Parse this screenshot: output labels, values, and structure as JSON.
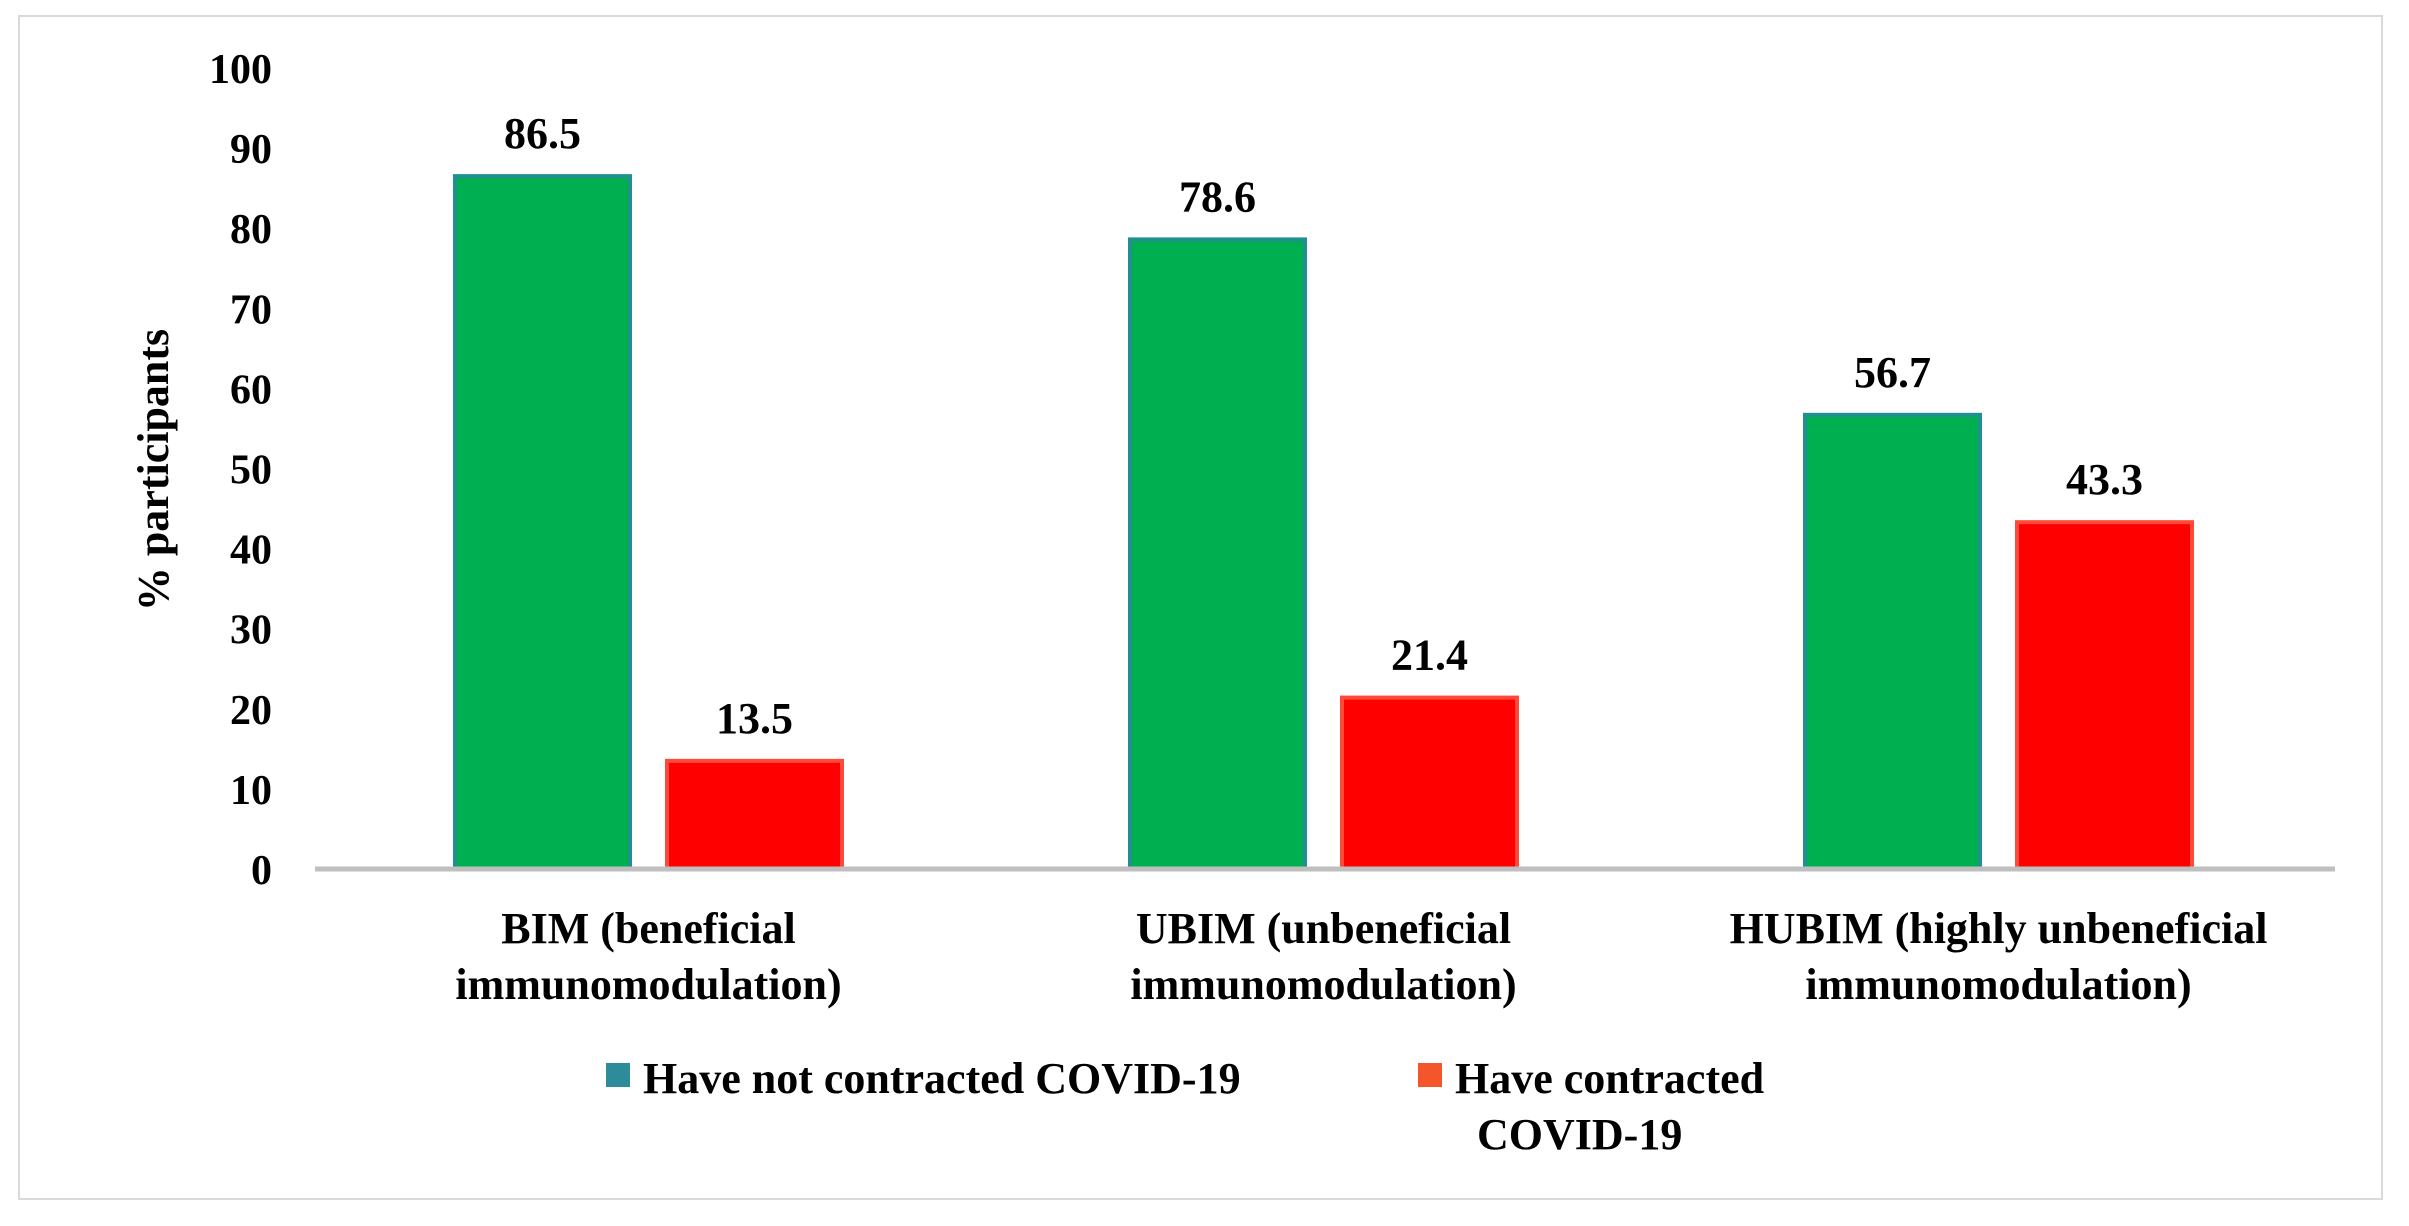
{
  "chart_data": {
    "type": "bar",
    "title": "",
    "xlabel": "",
    "ylabel": "% participants",
    "ylim": [
      0,
      100
    ],
    "yticks": [
      0,
      10,
      20,
      30,
      40,
      50,
      60,
      70,
      80,
      90,
      100
    ],
    "grid": false,
    "legend_position": "bottom",
    "categories": [
      [
        "BIM (beneficial",
        "immunomodulation)"
      ],
      [
        "UBIM (unbeneficial",
        "immunomodulation)"
      ],
      [
        "HUBIM (highly unbeneficial",
        "immunomodulation)"
      ]
    ],
    "series": [
      {
        "name": "Have not contracted  COVID-19",
        "legend_lines": [
          "Have not contracted  COVID-19"
        ],
        "values": [
          86.5,
          78.6,
          56.7
        ],
        "value_labels": [
          "86.5",
          "78.6",
          "56.7"
        ],
        "color": "#00b050",
        "border_color": "#1f8f8f",
        "legend_color": "#2e8b9a"
      },
      {
        "name": "Have contracted COVID-19",
        "legend_lines": [
          "Have contracted",
          "COVID-19"
        ],
        "values": [
          13.5,
          21.4,
          43.3
        ],
        "value_labels": [
          "13.5",
          "21.4",
          "43.3"
        ],
        "color": "#ff0000",
        "border_color": "#ff4a3a",
        "legend_color": "#f4552a"
      }
    ],
    "axis_color": "#bfbfbf"
  }
}
